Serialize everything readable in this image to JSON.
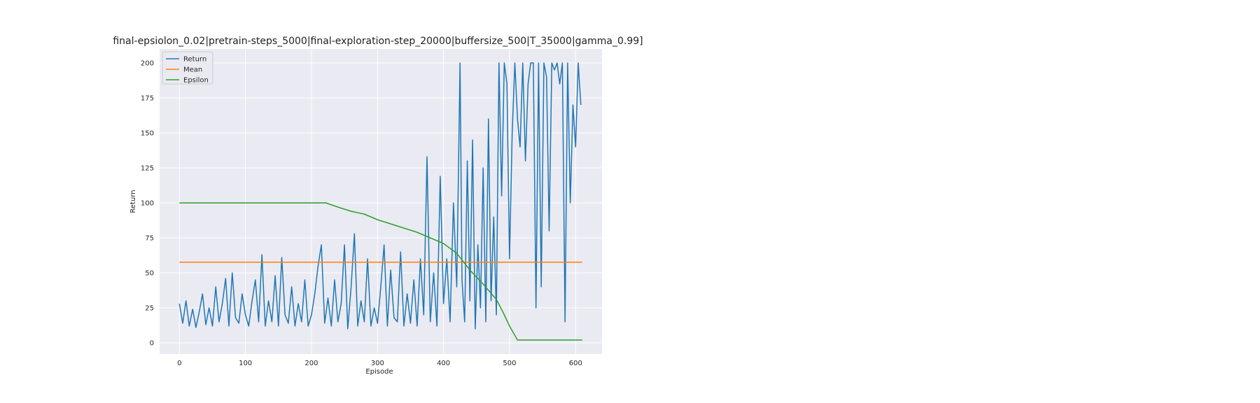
{
  "chart_data": {
    "type": "line",
    "title": "final-epsiolon_0.02|pretrain-steps_5000|final-exploration-step_20000|buffersize_500|T_35000|gamma_0.99]",
    "xlabel": "Episode",
    "ylabel": "Return",
    "xlim": [
      -30,
      640
    ],
    "ylim": [
      -8,
      210
    ],
    "xticks": [
      0,
      100,
      200,
      300,
      400,
      500,
      600
    ],
    "yticks": [
      0,
      25,
      50,
      75,
      100,
      125,
      150,
      175,
      200
    ],
    "grid": true,
    "legend": "top-left",
    "series": [
      {
        "name": "Return",
        "color": "#1f77b4",
        "x": [
          0,
          5,
          10,
          15,
          20,
          25,
          30,
          35,
          40,
          45,
          50,
          55,
          60,
          65,
          70,
          75,
          80,
          85,
          90,
          95,
          100,
          105,
          110,
          115,
          120,
          125,
          130,
          135,
          140,
          145,
          150,
          155,
          160,
          165,
          170,
          175,
          180,
          185,
          190,
          195,
          200,
          205,
          210,
          215,
          220,
          225,
          230,
          235,
          240,
          245,
          250,
          255,
          260,
          265,
          270,
          275,
          280,
          285,
          290,
          295,
          300,
          305,
          310,
          315,
          320,
          325,
          330,
          335,
          340,
          345,
          350,
          355,
          360,
          365,
          370,
          375,
          380,
          385,
          390,
          395,
          400,
          405,
          410,
          415,
          420,
          425,
          428,
          432,
          436,
          440,
          444,
          448,
          452,
          456,
          460,
          464,
          468,
          472,
          476,
          480,
          484,
          488,
          492,
          496,
          500,
          504,
          508,
          512,
          516,
          520,
          524,
          528,
          532,
          536,
          540,
          544,
          548,
          552,
          556,
          560,
          564,
          568,
          572,
          576,
          580,
          584,
          588,
          592,
          596,
          600,
          604,
          608
        ],
        "values": [
          28,
          14,
          30,
          12,
          24,
          11,
          22,
          35,
          13,
          25,
          12,
          40,
          15,
          28,
          46,
          12,
          50,
          18,
          14,
          35,
          20,
          12,
          30,
          45,
          15,
          63,
          12,
          30,
          15,
          48,
          12,
          61,
          20,
          14,
          40,
          12,
          28,
          15,
          45,
          12,
          20,
          35,
          55,
          70,
          14,
          32,
          12,
          45,
          15,
          28,
          70,
          10,
          40,
          78,
          12,
          30,
          15,
          60,
          12,
          25,
          14,
          40,
          70,
          12,
          52,
          18,
          15,
          65,
          12,
          35,
          14,
          45,
          12,
          60,
          20,
          133,
          15,
          50,
          12,
          119,
          28,
          60,
          15,
          100,
          40,
          200,
          45,
          15,
          130,
          30,
          145,
          10,
          70,
          25,
          125,
          15,
          160,
          30,
          90,
          20,
          200,
          105,
          200,
          185,
          60,
          150,
          200,
          160,
          140,
          200,
          130,
          185,
          200,
          200,
          25,
          200,
          40,
          200,
          190,
          80,
          200,
          195,
          200,
          185,
          200,
          15,
          200,
          100,
          170,
          140,
          200,
          170
        ]
      },
      {
        "name": "Mean",
        "color": "#ff7f0e",
        "x": [
          0,
          610
        ],
        "values": [
          57.6,
          57.6
        ]
      },
      {
        "name": "Epsilon",
        "color": "#2ca02c",
        "x": [
          0,
          222,
          240,
          260,
          280,
          300,
          320,
          340,
          360,
          380,
          400,
          420,
          440,
          460,
          480,
          490,
          500,
          512,
          610
        ],
        "values": [
          100,
          100,
          97,
          94,
          92,
          88,
          85,
          82,
          79,
          75,
          71,
          64,
          52,
          42,
          31,
          22,
          12,
          2,
          2
        ]
      }
    ]
  }
}
